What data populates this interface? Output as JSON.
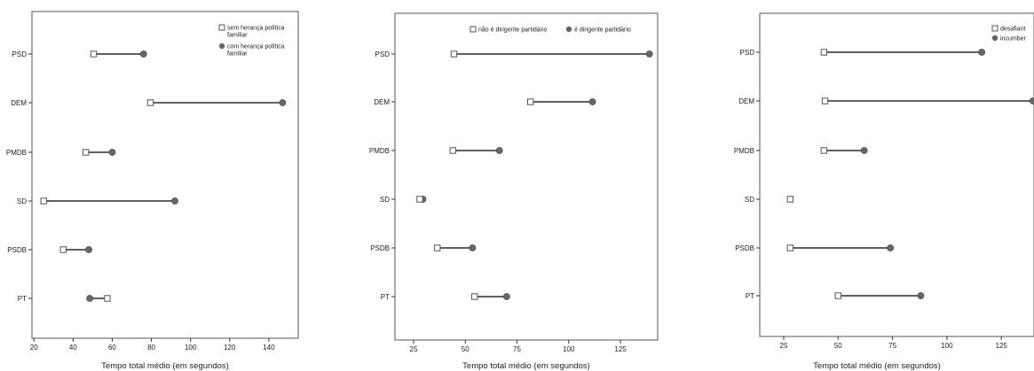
{
  "colors": {
    "frame": "#555555",
    "connector": "#000000",
    "marker_fill": "#666666",
    "marker_hollow_fill": "#ffffff",
    "marker_hollow_stroke": "#555555"
  },
  "chart_data": [
    {
      "type": "dumbbell",
      "categories": [
        "PSD",
        "DEM",
        "PMDB",
        "SD",
        "PSDB",
        "PT"
      ],
      "xlabel": "Tempo total médio (em segundos)",
      "xlim": [
        19,
        155
      ],
      "xticks": [
        20,
        40,
        60,
        80,
        100,
        120,
        140
      ],
      "legend_position": "top-right",
      "series": [
        {
          "name": "sem herança política familiar",
          "marker": "square-hollow",
          "values": [
            50.5,
            79.5,
            46.5,
            25,
            35,
            57.5
          ]
        },
        {
          "name": "com herança política familiar",
          "marker": "circle-filled",
          "values": [
            76,
            147,
            60,
            92,
            48,
            48.5
          ]
        }
      ]
    },
    {
      "type": "dumbbell",
      "categories": [
        "PSD",
        "DEM",
        "PMDB",
        "SD",
        "PSDB",
        "PT"
      ],
      "xlabel": "Tempo total médio (em segundos)",
      "xlim": [
        16,
        143
      ],
      "xticks": [
        25,
        50,
        75,
        100,
        125
      ],
      "legend_position": "top",
      "series": [
        {
          "name": "não é dirigente partidário",
          "marker": "square-hollow",
          "values": [
            44.5,
            81.5,
            44,
            28,
            36.5,
            54.5
          ]
        },
        {
          "name": "é dirigente partidário",
          "marker": "circle-filled",
          "values": [
            139,
            111.5,
            66.5,
            29.5,
            53.5,
            70
          ]
        }
      ]
    },
    {
      "type": "dumbbell",
      "categories": [
        "PSD",
        "DEM",
        "PMDB",
        "SD",
        "PSDB",
        "PT"
      ],
      "xlabel": "Tempo total médio (em segundos)",
      "xlim": [
        14,
        140
      ],
      "xticks": [
        25,
        50,
        75,
        100,
        125
      ],
      "legend_position": "top-right",
      "series": [
        {
          "name": "desafiant",
          "marker": "square-hollow",
          "values": [
            43.5,
            44,
            43.5,
            28,
            28,
            50
          ]
        },
        {
          "name": "incumber",
          "marker": "circle-filled",
          "values": [
            116,
            139.5,
            62,
            null,
            74,
            88
          ]
        }
      ]
    }
  ]
}
